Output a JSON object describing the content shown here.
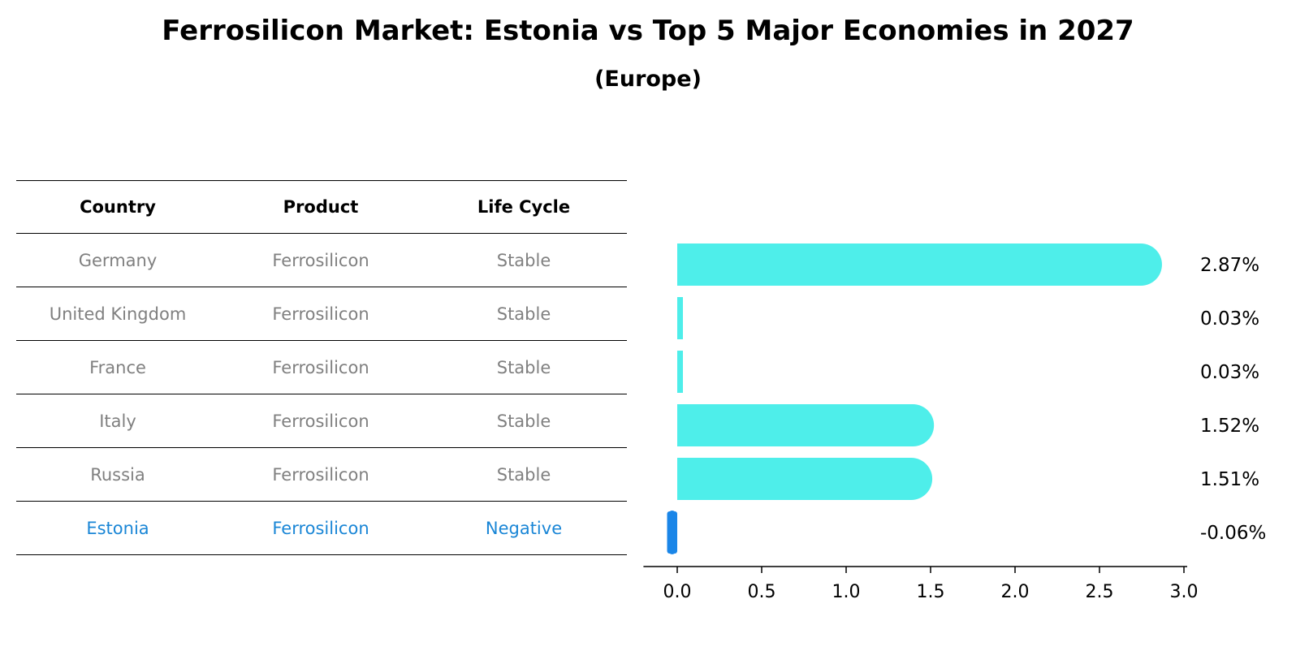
{
  "title": "Ferrosilicon Market: Estonia vs Top 5 Major Economies in 2027",
  "subtitle": "(Europe)",
  "table": {
    "headers": [
      "Country",
      "Product",
      "Life Cycle"
    ],
    "rows": [
      [
        "Germany",
        "Ferrosilicon",
        "Stable"
      ],
      [
        "United Kingdom",
        "Ferrosilicon",
        "Stable"
      ],
      [
        "France",
        "Ferrosilicon",
        "Stable"
      ],
      [
        "Italy",
        "Ferrosilicon",
        "Stable"
      ],
      [
        "Russia",
        "Ferrosilicon",
        "Stable"
      ],
      [
        "Estonia",
        "Ferrosilicon",
        "Negative"
      ]
    ],
    "highlight_row": 5,
    "highlight_color": "#1a86d6"
  },
  "chart_data": {
    "type": "bar",
    "orientation": "horizontal",
    "categories": [
      "Germany",
      "United Kingdom",
      "France",
      "Italy",
      "Russia",
      "Estonia"
    ],
    "values": [
      2.87,
      0.03,
      0.03,
      1.52,
      1.51,
      -0.06
    ],
    "value_labels": [
      "2.87%",
      "0.03%",
      "0.03%",
      "1.52%",
      "1.51%",
      "-0.06%"
    ],
    "xlim": [
      -0.2,
      3.0
    ],
    "xticks": [
      "0.0",
      "0.5",
      "1.0",
      "1.5",
      "2.0",
      "2.5",
      "3.0"
    ],
    "colors": {
      "positive": "#4eeeea",
      "negative": "#1a86e8"
    },
    "grid": false
  }
}
